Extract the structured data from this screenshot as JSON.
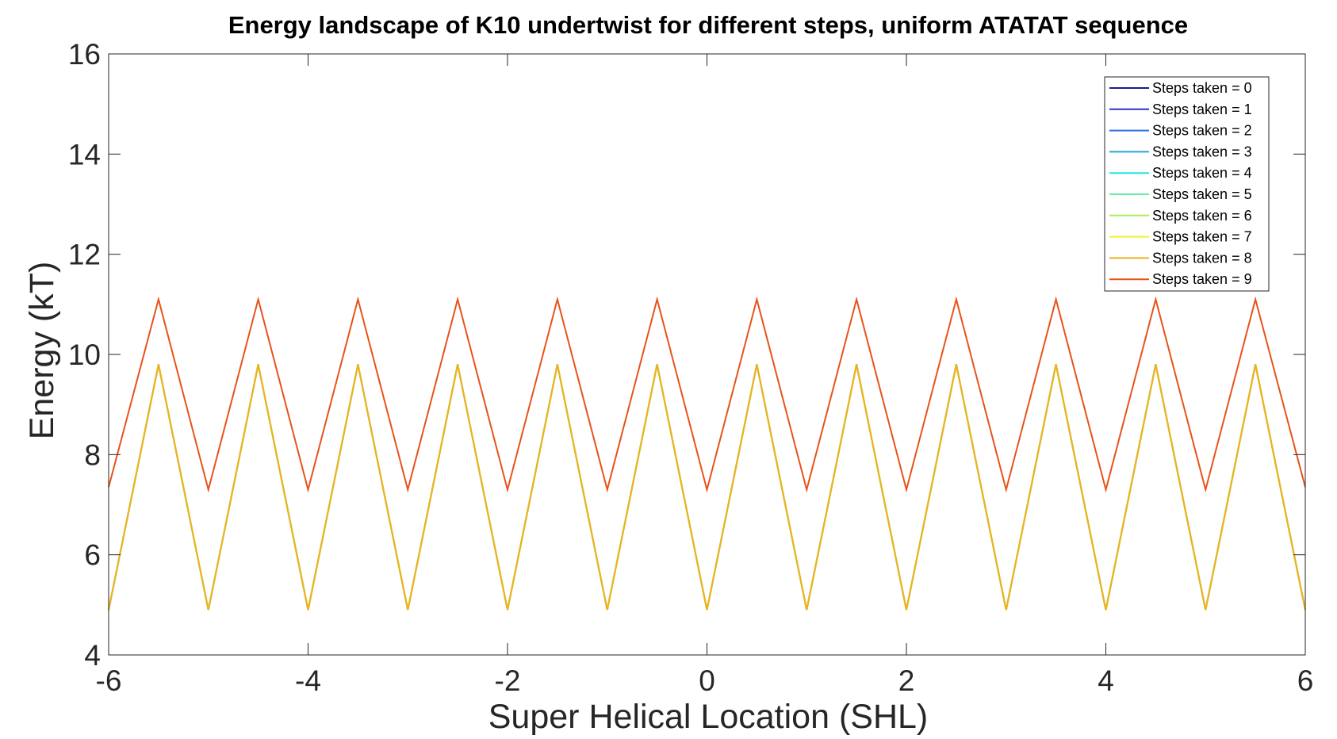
{
  "chart_data": {
    "type": "line",
    "title": "Energy landscape of K10 undertwist for different steps, uniform ATATAT sequence",
    "xlabel": "Super Helical Location (SHL)",
    "ylabel": "Energy (kT)",
    "xlim": [
      -6,
      6
    ],
    "ylim": [
      4,
      16
    ],
    "xticks": [
      -6,
      -4,
      -2,
      0,
      2,
      4,
      6
    ],
    "yticks": [
      4,
      6,
      8,
      10,
      12,
      14,
      16
    ],
    "xtick_labels": [
      "-6",
      "-4",
      "-2",
      "0",
      "2",
      "4",
      "6"
    ],
    "ytick_labels": [
      "4",
      "6",
      "8",
      "10",
      "12",
      "14",
      "16"
    ],
    "grid": false,
    "legend_position": "top-right",
    "x": [
      -6,
      -5.5,
      -5,
      -4.5,
      -4,
      -3.5,
      -3,
      -2.5,
      -2,
      -1.5,
      -1,
      -0.5,
      0,
      0.5,
      1,
      1.5,
      2,
      2.5,
      3,
      3.5,
      4,
      4.5,
      5,
      5.5,
      6
    ],
    "series": [
      {
        "name": "Steps taken = 0",
        "color": "#1a1a8c",
        "values": [
          4.9,
          9.8,
          4.9,
          9.8,
          4.9,
          9.8,
          4.9,
          9.8,
          4.9,
          9.8,
          4.9,
          9.8,
          4.9,
          9.8,
          4.9,
          9.8,
          4.9,
          9.8,
          4.9,
          9.8,
          4.9,
          9.8,
          4.9,
          9.8,
          4.9
        ]
      },
      {
        "name": "Steps taken = 1",
        "color": "#3030c8",
        "values": [
          4.9,
          9.8,
          4.9,
          9.8,
          4.9,
          9.8,
          4.9,
          9.8,
          4.9,
          9.8,
          4.9,
          9.8,
          4.9,
          9.8,
          4.9,
          9.8,
          4.9,
          9.8,
          4.9,
          9.8,
          4.9,
          9.8,
          4.9,
          9.8,
          4.9
        ]
      },
      {
        "name": "Steps taken = 2",
        "color": "#2a6ee0",
        "values": [
          4.9,
          9.8,
          4.9,
          9.8,
          4.9,
          9.8,
          4.9,
          9.8,
          4.9,
          9.8,
          4.9,
          9.8,
          4.9,
          9.8,
          4.9,
          9.8,
          4.9,
          9.8,
          4.9,
          9.8,
          4.9,
          9.8,
          4.9,
          9.8,
          4.9
        ]
      },
      {
        "name": "Steps taken = 3",
        "color": "#22a8d8",
        "values": [
          4.9,
          9.8,
          4.9,
          9.8,
          4.9,
          9.8,
          4.9,
          9.8,
          4.9,
          9.8,
          4.9,
          9.8,
          4.9,
          9.8,
          4.9,
          9.8,
          4.9,
          9.8,
          4.9,
          9.8,
          4.9,
          9.8,
          4.9,
          9.8,
          4.9
        ]
      },
      {
        "name": "Steps taken = 4",
        "color": "#1ee6e6",
        "values": [
          4.9,
          9.8,
          4.9,
          9.8,
          4.9,
          9.8,
          4.9,
          9.8,
          4.9,
          9.8,
          4.9,
          9.8,
          4.9,
          9.8,
          4.9,
          9.8,
          4.9,
          9.8,
          4.9,
          9.8,
          4.9,
          9.8,
          4.9,
          9.8,
          4.9
        ]
      },
      {
        "name": "Steps taken = 5",
        "color": "#66e8a8",
        "values": [
          4.9,
          9.8,
          4.9,
          9.8,
          4.9,
          9.8,
          4.9,
          9.8,
          4.9,
          9.8,
          4.9,
          9.8,
          4.9,
          9.8,
          4.9,
          9.8,
          4.9,
          9.8,
          4.9,
          9.8,
          4.9,
          9.8,
          4.9,
          9.8,
          4.9
        ]
      },
      {
        "name": "Steps taken = 6",
        "color": "#a8ee5a",
        "values": [
          4.9,
          9.8,
          4.9,
          9.8,
          4.9,
          9.8,
          4.9,
          9.8,
          4.9,
          9.8,
          4.9,
          9.8,
          4.9,
          9.8,
          4.9,
          9.8,
          4.9,
          9.8,
          4.9,
          9.8,
          4.9,
          9.8,
          4.9,
          9.8,
          4.9
        ]
      },
      {
        "name": "Steps taken = 7",
        "color": "#f2f22a",
        "values": [
          4.9,
          9.8,
          4.9,
          9.8,
          4.9,
          9.8,
          4.9,
          9.8,
          4.9,
          9.8,
          4.9,
          9.8,
          4.9,
          9.8,
          4.9,
          9.8,
          4.9,
          9.8,
          4.9,
          9.8,
          4.9,
          9.8,
          4.9,
          9.8,
          4.9
        ]
      },
      {
        "name": "Steps taken = 8",
        "color": "#f2b01a",
        "values": [
          4.9,
          9.8,
          4.9,
          9.8,
          4.9,
          9.8,
          4.9,
          9.8,
          4.9,
          9.8,
          4.9,
          9.8,
          4.9,
          9.8,
          4.9,
          9.8,
          4.9,
          9.8,
          4.9,
          9.8,
          4.9,
          9.8,
          4.9,
          9.8,
          4.9
        ]
      },
      {
        "name": "Steps taken = 9",
        "color": "#e8531a",
        "values": [
          7.35,
          11.1,
          7.3,
          11.1,
          7.3,
          11.1,
          7.3,
          11.1,
          7.3,
          11.1,
          7.3,
          11.1,
          7.3,
          11.1,
          7.3,
          11.1,
          7.3,
          11.1,
          7.3,
          11.1,
          7.3,
          11.1,
          7.3,
          11.1,
          7.35
        ]
      }
    ]
  }
}
